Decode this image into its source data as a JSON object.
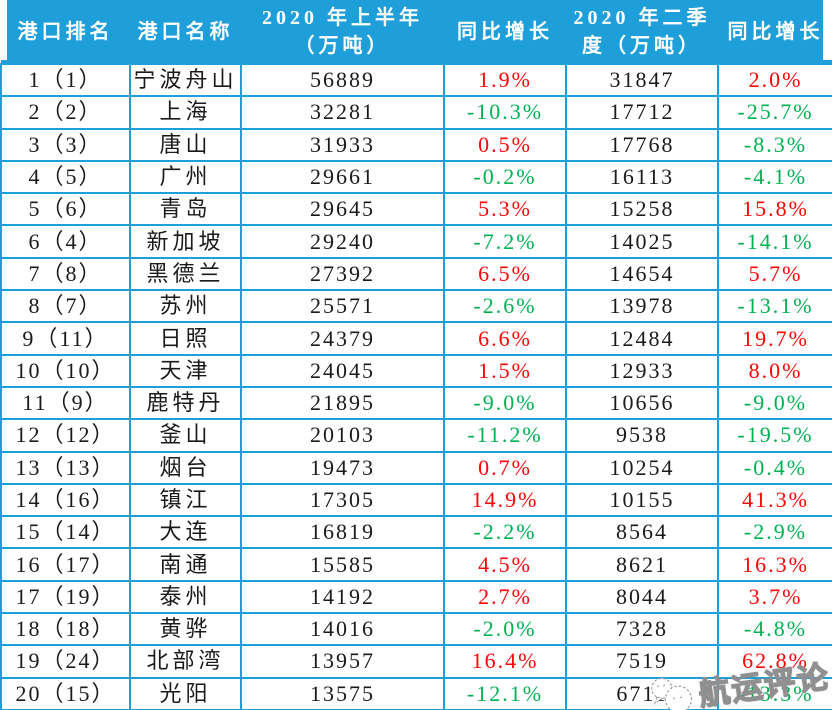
{
  "colors": {
    "header_bg": "#1e9fd9",
    "border": "#1e9fd9",
    "header_text": "#ffffff",
    "body_text": "#1a1a1a",
    "positive": "#fe0505",
    "negative": "#00b152"
  },
  "watermark": {
    "text": "航运评论"
  },
  "chart_data": {
    "type": "table",
    "columns": [
      "港口排名",
      "港口名称",
      "2020 年上半年\n（万吨）",
      "同比增长",
      "2020 年二季\n度（万吨）",
      "同比增长"
    ],
    "growth_column_indexes": [
      3,
      5
    ],
    "rows": [
      [
        "1（1）",
        "宁波舟山",
        "56889",
        "1.9%",
        "31847",
        "2.0%"
      ],
      [
        "2（2）",
        "上海",
        "32281",
        "-10.3%",
        "17712",
        "-25.7%"
      ],
      [
        "3（3）",
        "唐山",
        "31933",
        "0.5%",
        "17768",
        "-8.3%"
      ],
      [
        "4（5）",
        "广州",
        "29661",
        "-0.2%",
        "16113",
        "-4.1%"
      ],
      [
        "5（6）",
        "青岛",
        "29645",
        "5.3%",
        "15258",
        "15.8%"
      ],
      [
        "6（4）",
        "新加坡",
        "29240",
        "-7.2%",
        "14025",
        "-14.1%"
      ],
      [
        "7（8）",
        "黑德兰",
        "27392",
        "6.5%",
        "14654",
        "5.7%"
      ],
      [
        "8（7）",
        "苏州",
        "25571",
        "-2.6%",
        "13978",
        "-13.1%"
      ],
      [
        "9（11）",
        "日照",
        "24379",
        "6.6%",
        "12484",
        "19.7%"
      ],
      [
        "10（10）",
        "天津",
        "24045",
        "1.5%",
        "12933",
        "8.0%"
      ],
      [
        "11（9）",
        "鹿特丹",
        "21895",
        "-9.0%",
        "10656",
        "-9.0%"
      ],
      [
        "12（12）",
        "釜山",
        "20103",
        "-11.2%",
        "9538",
        "-19.5%"
      ],
      [
        "13（13）",
        "烟台",
        "19473",
        "0.7%",
        "10254",
        "-0.4%"
      ],
      [
        "14（16）",
        "镇江",
        "17305",
        "14.9%",
        "10155",
        "41.3%"
      ],
      [
        "15（14）",
        "大连",
        "16819",
        "-2.2%",
        "8564",
        "-2.9%"
      ],
      [
        "16（17）",
        "南通",
        "15585",
        "4.5%",
        "8621",
        "16.3%"
      ],
      [
        "17（19）",
        "泰州",
        "14192",
        "2.7%",
        "8044",
        "3.7%"
      ],
      [
        "18（18）",
        "黄骅",
        "14016",
        "-2.0%",
        "7328",
        "-4.8%"
      ],
      [
        "19（24）",
        "北部湾",
        "13957",
        "16.4%",
        "7519",
        "62.8%"
      ],
      [
        "20（15）",
        "光阳",
        "13575",
        "-12.1%",
        "6711",
        "-13.3%"
      ]
    ]
  }
}
